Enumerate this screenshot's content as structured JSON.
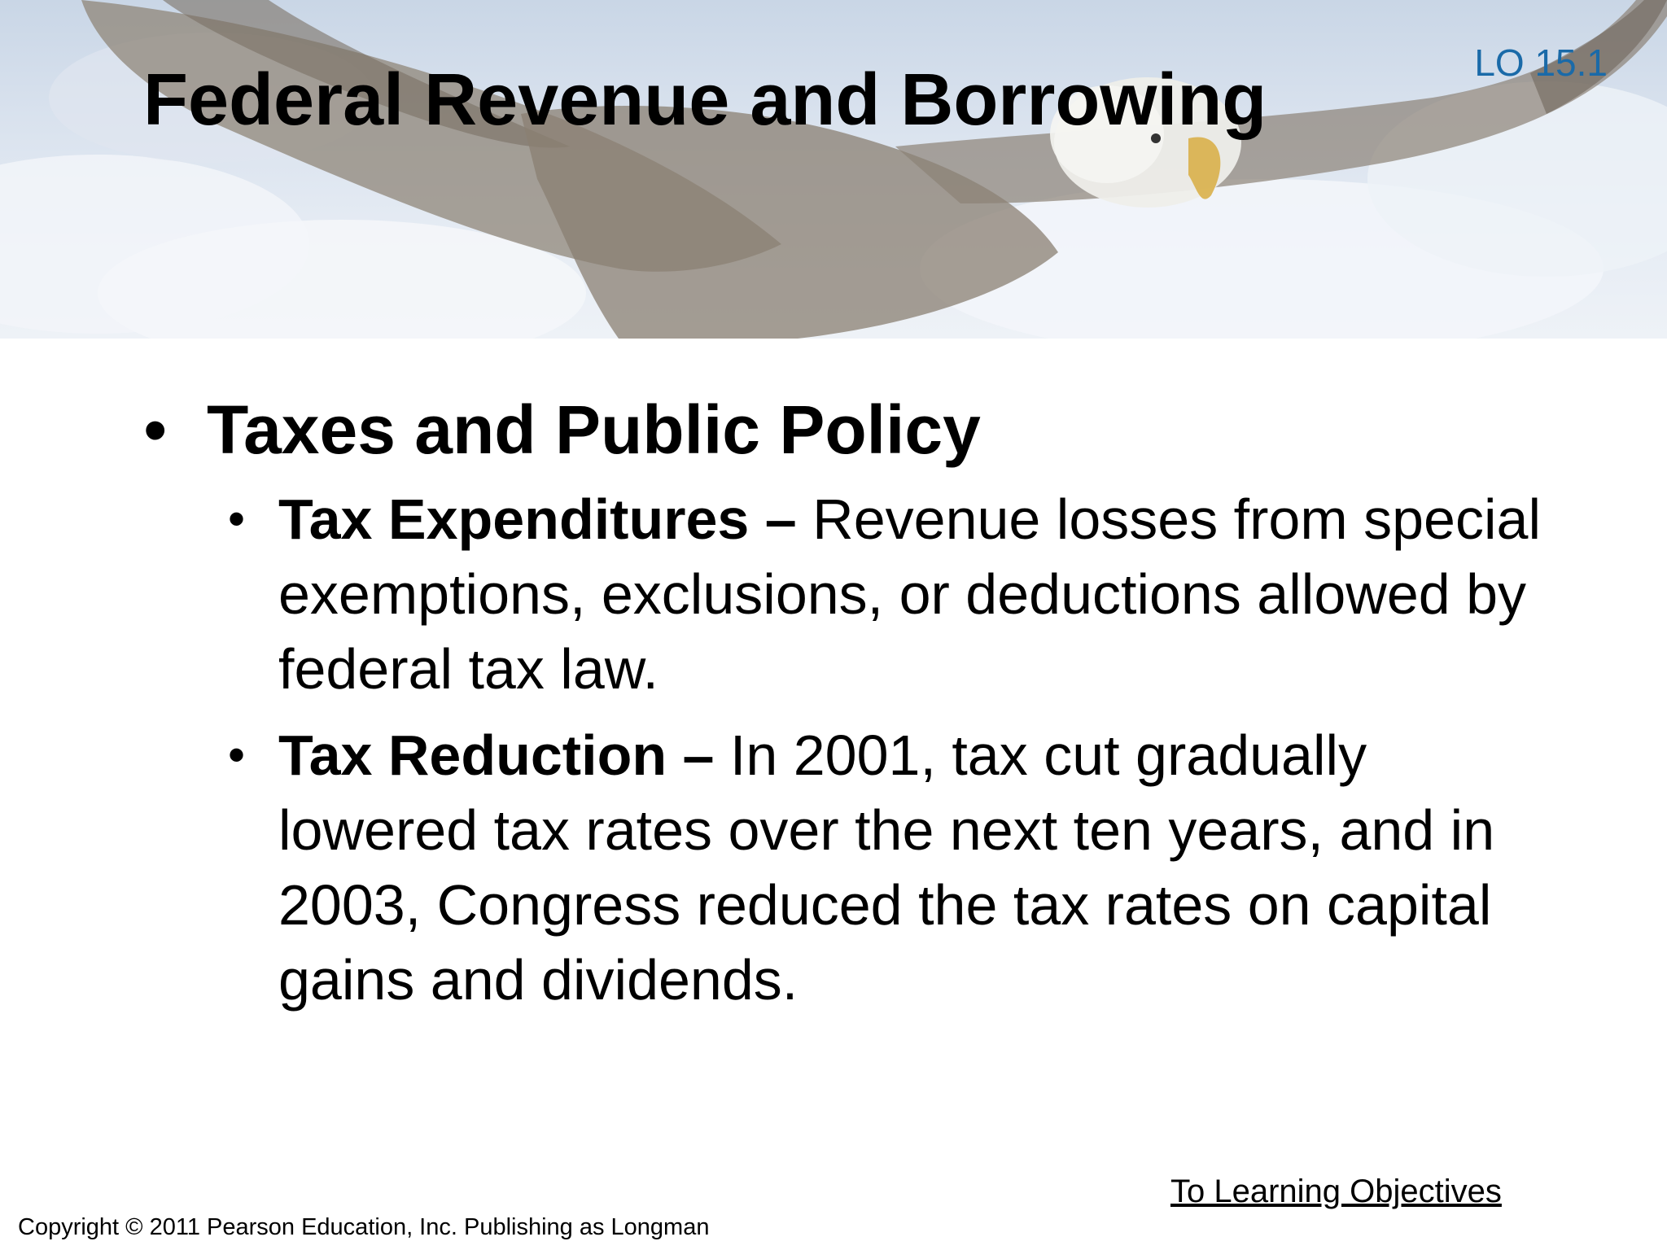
{
  "header": {
    "lo_tag": "LO 15.1",
    "title": "Federal Revenue and Borrowing"
  },
  "content": {
    "heading": "Taxes and Public Policy",
    "items": [
      {
        "term": "Tax Expenditures –",
        "text": " Revenue losses from special exemptions, exclusions, or deductions allowed by federal tax law."
      },
      {
        "term": "Tax Reduction –",
        "text": " In 2001, tax cut gradually lowered tax rates over the next ten years, and in 2003, Congress reduced the tax rates on capital gains and dividends."
      }
    ]
  },
  "footer": {
    "link_label": "To Learning Objectives",
    "copyright": "Copyright © 2011 Pearson Education, Inc. Publishing as Longman"
  },
  "colors": {
    "lo_tag": "#1a6aa8",
    "text": "#000000",
    "background": "#ffffff"
  },
  "icons": {
    "bullet": "bullet-dot",
    "banner": "eagle-sky-image"
  }
}
